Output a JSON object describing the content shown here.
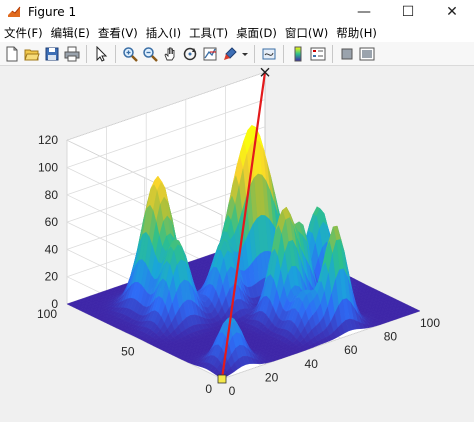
{
  "window": {
    "title": "Figure 1",
    "controls": {
      "minimize": "—",
      "maximize": "☐",
      "close": "✕"
    }
  },
  "menu": {
    "items": [
      "文件(F)",
      "编辑(E)",
      "查看(V)",
      "插入(I)",
      "工具(T)",
      "桌面(D)",
      "窗口(W)",
      "帮助(H)"
    ]
  },
  "toolbar": {
    "icons": [
      "new-figure-icon",
      "open-file-icon",
      "save-icon",
      "print-icon",
      "arrow-select-icon",
      "zoom-in-icon",
      "zoom-out-icon",
      "pan-hand-icon",
      "rotate-3d-icon",
      "data-cursor-icon",
      "brush-icon",
      "brush-dropdown-icon",
      "link-plot-icon",
      "colorbar-icon",
      "legend-icon",
      "hide-plot-tools-icon",
      "show-plot-tools-icon"
    ]
  },
  "chart_data": {
    "type": "surface",
    "x_ticks": [
      "0",
      "20",
      "40",
      "60",
      "80",
      "100"
    ],
    "y_ticks": [
      "0",
      "50",
      "100"
    ],
    "z_ticks": [
      "0",
      "20",
      "40",
      "60",
      "80",
      "100",
      "120"
    ],
    "xlim": [
      0,
      100
    ],
    "ylim": [
      0,
      100
    ],
    "zlim": [
      0,
      120
    ],
    "grid": true,
    "colormap": [
      "#3e26a8",
      "#2e6cf6",
      "#1aa6d9",
      "#2dc08d",
      "#a5be3c",
      "#f9d22e",
      "#f9fb0e"
    ],
    "line": {
      "color": "#e31a1c",
      "from": [
        0,
        0,
        0
      ],
      "to": [
        100,
        100,
        120
      ]
    }
  }
}
